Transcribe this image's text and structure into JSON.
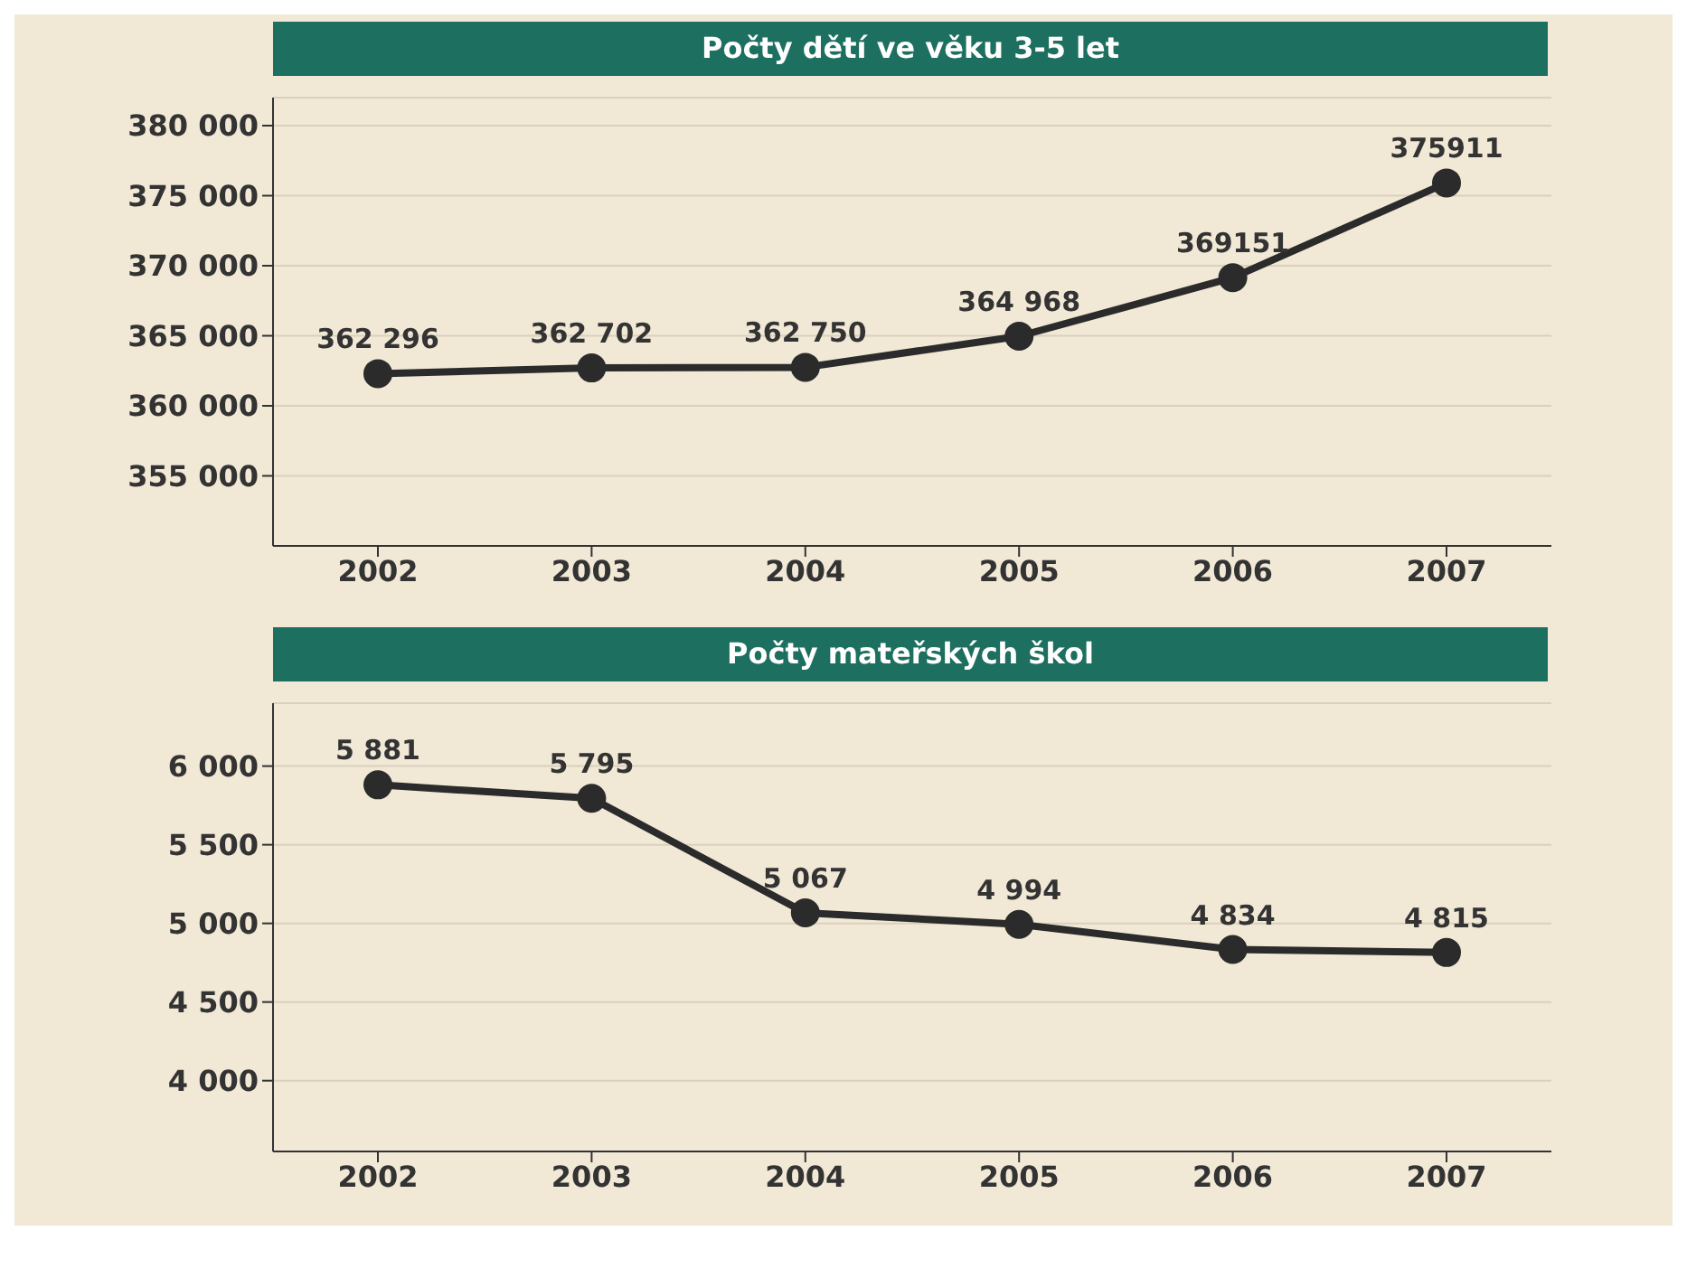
{
  "chart_data": [
    {
      "type": "line",
      "title": "Počty dětí ve věku 3-5 let",
      "categories": [
        "2002",
        "2003",
        "2004",
        "2005",
        "2006",
        "2007"
      ],
      "series": [
        {
          "color": "#2b2b2b",
          "values": [
            362296,
            362702,
            362750,
            364968,
            369151,
            375911
          ],
          "value_labels": [
            "362 296",
            "362 702",
            "362 750",
            "364 968",
            "369151",
            "375911"
          ]
        }
      ],
      "ylim": [
        350000,
        382000
      ],
      "yticks": [
        {
          "value": 355000,
          "label": "355 000"
        },
        {
          "value": 360000,
          "label": "360 000"
        },
        {
          "value": 365000,
          "label": "365 000"
        },
        {
          "value": 370000,
          "label": "370 000"
        },
        {
          "value": 375000,
          "label": "375 000"
        },
        {
          "value": 380000,
          "label": "380 000"
        }
      ],
      "grid": "y",
      "marker": "circle",
      "line_style": "solid",
      "legend": false
    },
    {
      "type": "line",
      "title": "Počty mateřských škol",
      "categories": [
        "2002",
        "2003",
        "2004",
        "2005",
        "2006",
        "2007"
      ],
      "series": [
        {
          "color": "#2b2b2b",
          "values": [
            5881,
            5795,
            5067,
            4994,
            4834,
            4815
          ],
          "value_labels": [
            "5 881",
            "5 795",
            "5 067",
            "4 994",
            "4 834",
            "4 815"
          ]
        }
      ],
      "ylim": [
        3550,
        6400
      ],
      "yticks": [
        {
          "value": 4000,
          "label": "4 000"
        },
        {
          "value": 4500,
          "label": "4 500"
        },
        {
          "value": 5000,
          "label": "5 000"
        },
        {
          "value": 5500,
          "label": "5 500"
        },
        {
          "value": 6000,
          "label": "6 000"
        }
      ],
      "grid": "y",
      "marker": "circle",
      "line_style": "solid",
      "legend": false
    }
  ]
}
